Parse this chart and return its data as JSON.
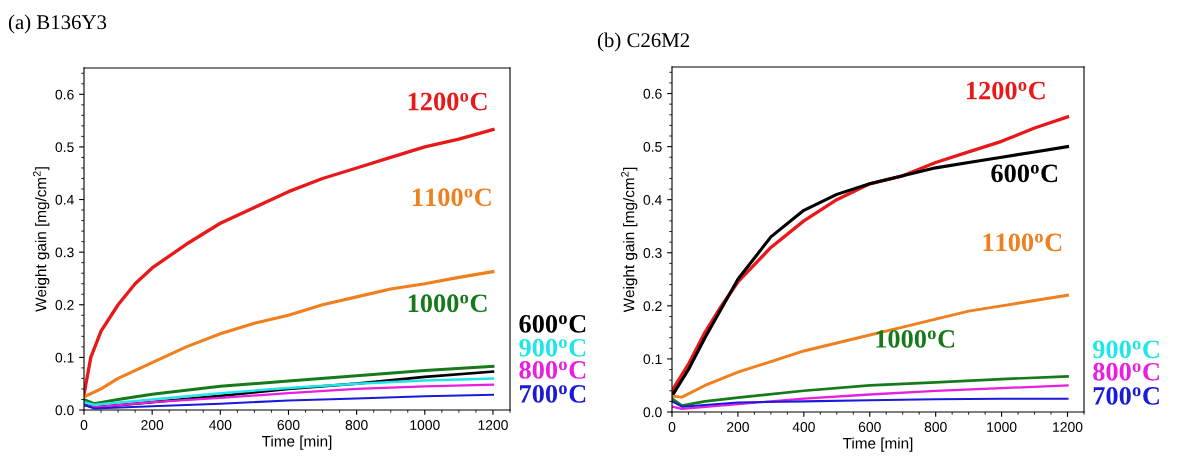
{
  "chart_data": [
    {
      "type": "line",
      "title": "(a) B136Y3",
      "xlabel": "Time [min]",
      "ylabel": "Weight gain [mg/cm$^{2}$]",
      "xlim": [
        0,
        1250
      ],
      "ylim": [
        0,
        0.65
      ],
      "xticks": [
        0,
        200,
        400,
        600,
        800,
        1000,
        1200
      ],
      "yticks": [
        {
          "value": 0,
          "label": "0.0"
        },
        0.1,
        0.2,
        0.3,
        0.4,
        0.5,
        0.6
      ],
      "grid": false,
      "legend": false,
      "marker": "none",
      "line_style": "solid",
      "series": [
        {
          "name": "1200$^{o}$C",
          "color": "#e8191b",
          "x": [
            0,
            20,
            50,
            100,
            150,
            200,
            300,
            400,
            500,
            600,
            700,
            800,
            900,
            1000,
            1100,
            1200
          ],
          "values": [
            0.03,
            0.1,
            0.15,
            0.2,
            0.24,
            0.27,
            0.315,
            0.355,
            0.385,
            0.415,
            0.44,
            0.46,
            0.48,
            0.5,
            0.515,
            0.533
          ]
        },
        {
          "name": "1100$^{o}$C",
          "color": "#f07f1e",
          "x": [
            0,
            50,
            100,
            200,
            300,
            400,
            500,
            600,
            700,
            800,
            900,
            1000,
            1100,
            1200
          ],
          "values": [
            0.025,
            0.04,
            0.06,
            0.09,
            0.12,
            0.145,
            0.165,
            0.18,
            0.2,
            0.215,
            0.23,
            0.24,
            0.252,
            0.263
          ]
        },
        {
          "name": "1000$^{o}$C",
          "color": "#167a1b",
          "x": [
            0,
            30,
            100,
            200,
            400,
            600,
            800,
            1000,
            1200
          ],
          "values": [
            0.02,
            0.012,
            0.02,
            0.03,
            0.045,
            0.055,
            0.065,
            0.075,
            0.083
          ]
        },
        {
          "name": "600$^{o}$C",
          "color": "#000000",
          "x": [
            0,
            30,
            200,
            400,
            600,
            800,
            1000,
            1200
          ],
          "values": [
            0.01,
            0.005,
            0.015,
            0.027,
            0.04,
            0.05,
            0.063,
            0.073
          ]
        },
        {
          "name": "900$^{o}$C",
          "color": "#22e5ea",
          "x": [
            0,
            30,
            200,
            400,
            600,
            800,
            1000,
            1200
          ],
          "values": [
            0.015,
            0.01,
            0.02,
            0.032,
            0.042,
            0.05,
            0.056,
            0.06
          ]
        },
        {
          "name": "800$^{o}$C",
          "color": "#e81ee0",
          "x": [
            0,
            30,
            200,
            400,
            600,
            800,
            1000,
            1200
          ],
          "values": [
            0.01,
            0.005,
            0.015,
            0.023,
            0.032,
            0.04,
            0.045,
            0.048
          ]
        },
        {
          "name": "700$^{o}$C",
          "color": "#1a1adb",
          "x": [
            0,
            30,
            200,
            400,
            600,
            800,
            1000,
            1200
          ],
          "values": [
            0.01,
            0.003,
            0.007,
            0.012,
            0.018,
            0.022,
            0.026,
            0.029
          ]
        }
      ]
    },
    {
      "type": "line",
      "title": "(b) C26M2",
      "xlabel": "Time [min]",
      "ylabel": "Weight gain [mg/cm$^{2}$]",
      "xlim": [
        0,
        1250
      ],
      "ylim": [
        0,
        0.65
      ],
      "xticks": [
        0,
        200,
        400,
        600,
        800,
        1000,
        1200
      ],
      "yticks": [
        {
          "value": 0,
          "label": "0.0"
        },
        0.1,
        0.2,
        0.3,
        0.4,
        0.5,
        0.6
      ],
      "grid": false,
      "legend": false,
      "marker": "none",
      "line_style": "solid",
      "series": [
        {
          "name": "1200$^{o}$C",
          "color": "#e8191b",
          "x": [
            0,
            50,
            100,
            150,
            200,
            300,
            400,
            500,
            600,
            700,
            800,
            900,
            1000,
            1100,
            1200
          ],
          "values": [
            0.04,
            0.09,
            0.15,
            0.2,
            0.245,
            0.31,
            0.36,
            0.4,
            0.43,
            0.445,
            0.47,
            0.49,
            0.51,
            0.535,
            0.556
          ]
        },
        {
          "name": "600$^{o}$C",
          "color": "#000000",
          "x": [
            0,
            50,
            100,
            200,
            300,
            400,
            500,
            600,
            700,
            800,
            900,
            1000,
            1100,
            1200
          ],
          "values": [
            0.03,
            0.08,
            0.14,
            0.25,
            0.33,
            0.38,
            0.41,
            0.43,
            0.445,
            0.46,
            0.47,
            0.48,
            0.49,
            0.5
          ]
        },
        {
          "name": "1100$^{o}$C",
          "color": "#f07f1e",
          "x": [
            0,
            30,
            100,
            200,
            300,
            400,
            500,
            600,
            700,
            800,
            900,
            1000,
            1100,
            1200
          ],
          "values": [
            0.03,
            0.028,
            0.05,
            0.075,
            0.095,
            0.115,
            0.13,
            0.145,
            0.16,
            0.175,
            0.19,
            0.2,
            0.21,
            0.22
          ]
        },
        {
          "name": "1000$^{o}$C",
          "color": "#167a1b",
          "x": [
            0,
            30,
            100,
            200,
            400,
            600,
            800,
            1000,
            1200
          ],
          "values": [
            0.025,
            0.012,
            0.02,
            0.027,
            0.04,
            0.05,
            0.056,
            0.062,
            0.067
          ]
        },
        {
          "name": "900$^{o}$C",
          "color": "#22e5ea"
        },
        {
          "name": "800$^{o}$C",
          "color": "#e81ee0",
          "x": [
            0,
            30,
            200,
            400,
            600,
            800,
            1000,
            1200
          ],
          "values": [
            0.01,
            0.006,
            0.015,
            0.025,
            0.033,
            0.04,
            0.045,
            0.05
          ]
        },
        {
          "name": "700$^{o}$C",
          "color": "#1a1adb",
          "x": [
            0,
            30,
            200,
            400,
            600,
            800,
            1000,
            1200
          ],
          "values": [
            0.02,
            0.01,
            0.018,
            0.02,
            0.022,
            0.024,
            0.025,
            0.025
          ]
        }
      ]
    }
  ]
}
